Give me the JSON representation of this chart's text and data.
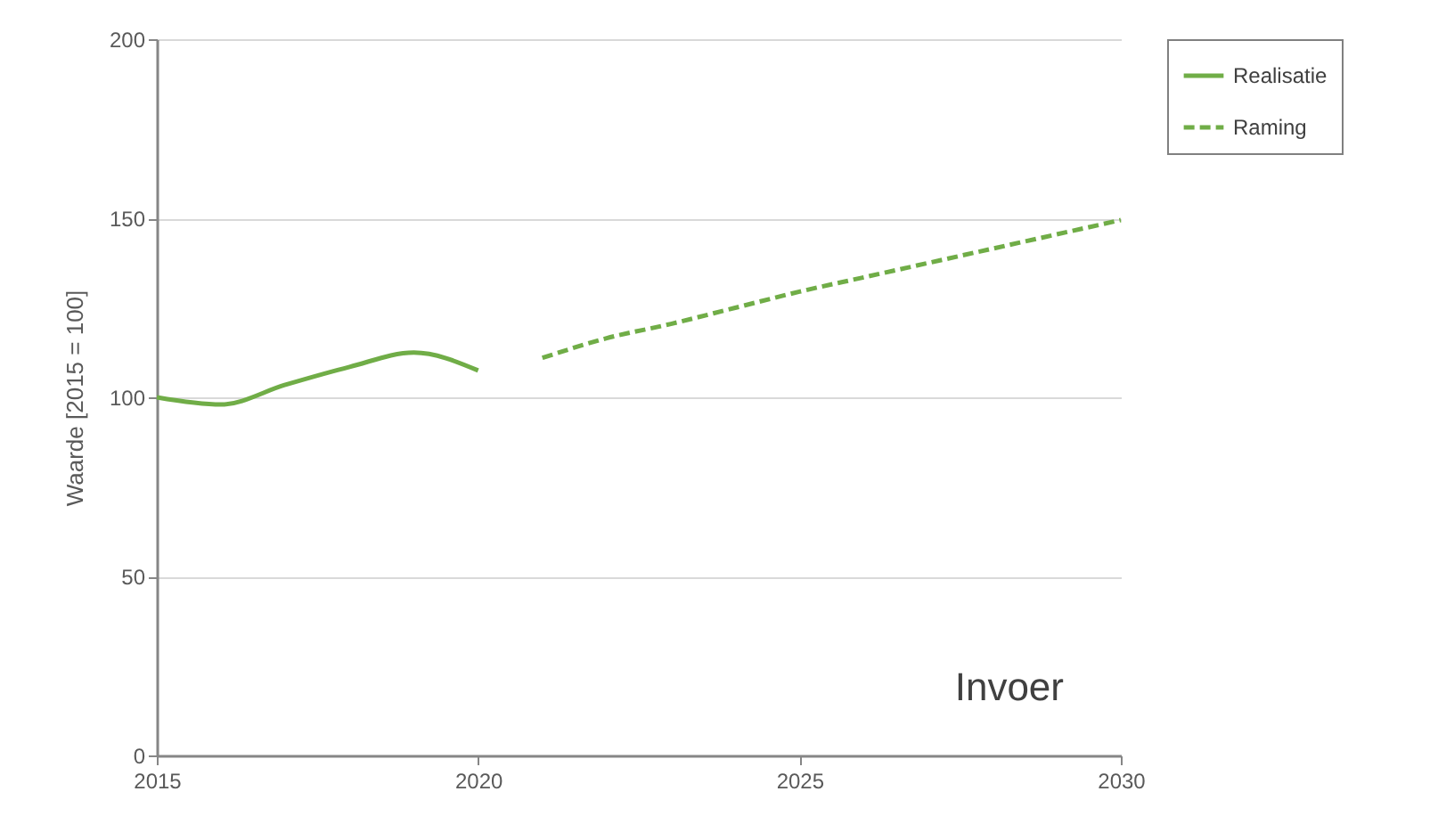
{
  "chart_data": {
    "type": "line",
    "ylabel": "Waarde [2015 = 100]",
    "xlim": [
      2015,
      2030
    ],
    "xticks": [
      2015,
      2020,
      2025,
      2030
    ],
    "ylim": [
      0,
      200
    ],
    "yticks": [
      0,
      50,
      100,
      150,
      200
    ],
    "grid": "y",
    "legend": "top right",
    "annotations": [
      "Invoer"
    ],
    "series": [
      {
        "name": "Realisatie",
        "color": "#70ad47",
        "line_style": "solid",
        "x": [
          2015,
          2016,
          2017,
          2018,
          2019,
          2020
        ],
        "values": [
          100,
          98,
          103.5,
          108.5,
          112.5,
          107.5
        ]
      },
      {
        "name": "Raming",
        "color": "#70ad47",
        "line_style": "dashed",
        "x": [
          2021,
          2022,
          2023,
          2024,
          2025,
          2026,
          2027,
          2028,
          2029,
          2030
        ],
        "values": [
          111,
          116.5,
          120.5,
          125,
          129.5,
          133.5,
          137.5,
          141.5,
          145.5,
          149.5
        ]
      }
    ]
  }
}
